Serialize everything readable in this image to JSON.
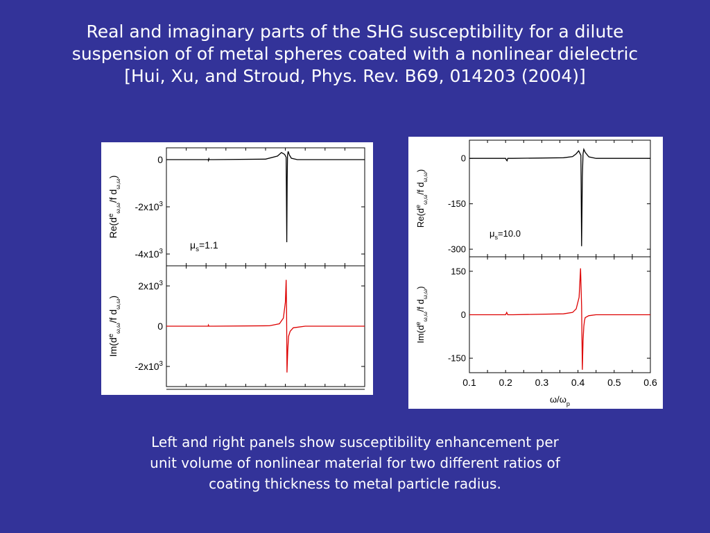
{
  "slide": {
    "title_lines": [
      "Real and imaginary parts of the SHG susceptibility for a dilute",
      "suspension of of metal spheres coated with a nonlinear dielectric",
      "[Hui, Xu, and Stroud, Phys. Rev. B69, 014203 (2004)]"
    ],
    "caption_lines": [
      "Left and right panels show susceptibility enhancement per",
      "unit volume of nonlinear material for two different ratios of",
      "coating thickness to metal particle radius."
    ],
    "background_color": "#333399",
    "text_color": "#ffffff"
  },
  "chart_data": [
    {
      "type": "line",
      "panel": "left",
      "annotation": {
        "symbol": "μ",
        "subscript": "s",
        "text": "=1.1"
      },
      "subplots": [
        {
          "ylabel": {
            "prefix": "Re(d",
            "sup": "e",
            "sub1": "ω,ω",
            "mid": "/f d",
            "sub2": "ω,ω",
            "suffix": ")"
          },
          "ylim": [
            -4500,
            500
          ],
          "yticks": [
            {
              "value": 0,
              "label": "0"
            },
            {
              "value": -2000,
              "label": "-2x10",
              "sup": "3"
            },
            {
              "value": -4000,
              "label": "-4x10",
              "sup": "3"
            }
          ],
          "color": "#000000",
          "x": [
            0.1,
            0.205,
            0.206,
            0.207,
            0.208,
            0.22,
            0.35,
            0.38,
            0.39,
            0.398,
            0.402,
            0.4035,
            0.4045,
            0.4055,
            0.407,
            0.41,
            0.415,
            0.43,
            0.45,
            0.6
          ],
          "y": [
            0,
            0,
            -40,
            40,
            0,
            0,
            20,
            150,
            300,
            220,
            100,
            -3500,
            -800,
            200,
            350,
            200,
            60,
            0,
            0,
            0
          ]
        },
        {
          "ylabel": {
            "prefix": "Im(d",
            "sup": "e",
            "sub1": "ω,ω",
            "mid": "/f d",
            "sub2": "ω,ω",
            "suffix": ")"
          },
          "ylim": [
            -3000,
            3000
          ],
          "yticks": [
            {
              "value": 2000,
              "label": "2x10",
              "sup": "3"
            },
            {
              "value": 0,
              "label": "0"
            },
            {
              "value": -2000,
              "label": "-2x10",
              "sup": "3"
            }
          ],
          "color": "#dd0000",
          "x": [
            0.1,
            0.205,
            0.206,
            0.207,
            0.22,
            0.36,
            0.385,
            0.395,
            0.4,
            0.402,
            0.403,
            0.404,
            0.406,
            0.408,
            0.412,
            0.42,
            0.45,
            0.6
          ],
          "y": [
            0,
            0,
            60,
            0,
            0,
            20,
            120,
            400,
            1200,
            2300,
            900,
            -2300,
            -1200,
            -500,
            -250,
            -80,
            0,
            0
          ]
        }
      ],
      "xlim": [
        0.1,
        0.6
      ]
    },
    {
      "type": "line",
      "panel": "right",
      "annotation": {
        "symbol": "μ",
        "subscript": "s",
        "text": "=10.0"
      },
      "xlabel": {
        "num": "ω",
        "den": "ω",
        "den_sub": "p"
      },
      "xlim": [
        0.1,
        0.6
      ],
      "xticks": [
        "0.1",
        "0.2",
        "0.3",
        "0.4",
        "0.5",
        "0.6"
      ],
      "subplots": [
        {
          "ylabel": {
            "prefix": "Re(d",
            "sup": "e",
            "sub1": "ω,ω",
            "mid": "/f d",
            "sub2": "ω,ω",
            "suffix": ")"
          },
          "ylim": [
            -325,
            60
          ],
          "yticks": [
            {
              "value": 0,
              "label": "0"
            },
            {
              "value": -150,
              "label": "-150"
            },
            {
              "value": -300,
              "label": "-300"
            }
          ],
          "color": "#000000",
          "x": [
            0.1,
            0.2,
            0.202,
            0.204,
            0.206,
            0.22,
            0.36,
            0.385,
            0.395,
            0.402,
            0.408,
            0.41,
            0.412,
            0.414,
            0.416,
            0.42,
            0.43,
            0.45,
            0.6
          ],
          "y": [
            0,
            0,
            -5,
            -8,
            0,
            0,
            2,
            6,
            15,
            25,
            10,
            -290,
            -60,
            15,
            30,
            20,
            5,
            0,
            0
          ]
        },
        {
          "ylabel": {
            "prefix": "Im(d",
            "sup": "e",
            "sub1": "ω,ω",
            "mid": "/f d",
            "sub2": "ω,ω",
            "suffix": ")"
          },
          "ylim": [
            -200,
            200
          ],
          "yticks": [
            {
              "value": 150,
              "label": "150"
            },
            {
              "value": 0,
              "label": "0"
            },
            {
              "value": -150,
              "label": "-150"
            }
          ],
          "color": "#dd0000",
          "x": [
            0.1,
            0.2,
            0.203,
            0.206,
            0.22,
            0.36,
            0.385,
            0.395,
            0.403,
            0.407,
            0.41,
            0.412,
            0.414,
            0.416,
            0.418,
            0.42,
            0.43,
            0.45,
            0.6
          ],
          "y": [
            0,
            0,
            8,
            0,
            0,
            3,
            8,
            20,
            60,
            160,
            30,
            -190,
            -90,
            -40,
            -20,
            -10,
            -3,
            0,
            0
          ]
        }
      ]
    }
  ]
}
